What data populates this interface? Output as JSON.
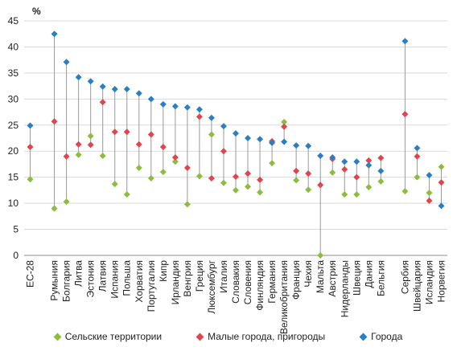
{
  "chart_data": {
    "type": "scatter",
    "unit_label": "%",
    "ylim": [
      0,
      45
    ],
    "yticks": [
      0,
      5,
      10,
      15,
      20,
      25,
      30,
      35,
      40,
      45
    ],
    "grid": "horizontal",
    "legend_position": "bottom",
    "categories": [
      "ЕС-28",
      "",
      "Румыния",
      "Болгария",
      "Литва",
      "Эстония",
      "Латвия",
      "Испания",
      "Польша",
      "Хорватия",
      "Португалия",
      "Кипр",
      "Ирландия",
      "Венгрия",
      "Греция",
      "Люксембург",
      "Италия",
      "Словакия",
      "Словения",
      "Финляндия",
      "Германия",
      "Великобритания",
      "Франция",
      "Чехия",
      "Мальта",
      "Австрия",
      "Нидерланды",
      "Швеция",
      "Дания",
      "Бельгия",
      "",
      "Сербия",
      "Швейцария",
      "Исландия",
      "Норвегия"
    ],
    "series": [
      {
        "name": "Сельские территории",
        "color": "#8cbd3f",
        "values": [
          14.6,
          null,
          9.0,
          10.3,
          19.3,
          22.9,
          19.1,
          13.7,
          11.7,
          16.8,
          14.8,
          16.0,
          18.0,
          9.8,
          15.2,
          23.2,
          13.9,
          12.5,
          13.2,
          12.1,
          17.7,
          25.6,
          14.4,
          12.6,
          0.0,
          15.9,
          11.7,
          11.7,
          13.1,
          14.2,
          null,
          12.3,
          15.0,
          12.0,
          17.0
        ]
      },
      {
        "name": "Малые города, пригороды",
        "color": "#e1444c",
        "values": [
          20.8,
          null,
          25.7,
          19.0,
          21.3,
          21.2,
          29.4,
          23.7,
          23.7,
          21.3,
          23.2,
          20.8,
          18.8,
          16.8,
          26.6,
          14.8,
          20.0,
          15.1,
          15.7,
          14.5,
          21.9,
          24.7,
          16.2,
          15.7,
          13.5,
          18.5,
          16.5,
          15.0,
          18.2,
          18.7,
          null,
          27.1,
          19.0,
          10.5,
          14.0
        ]
      },
      {
        "name": "Города",
        "color": "#2a7fc2",
        "values": [
          24.9,
          null,
          42.5,
          37.1,
          34.2,
          33.4,
          32.4,
          31.9,
          31.9,
          31.1,
          30.0,
          29.0,
          28.6,
          28.4,
          28.0,
          26.4,
          24.8,
          23.4,
          22.5,
          22.3,
          21.6,
          21.8,
          21.1,
          21.0,
          19.1,
          18.8,
          18.0,
          18.0,
          17.3,
          16.2,
          null,
          41.1,
          20.6,
          15.4,
          9.5
        ]
      }
    ]
  }
}
